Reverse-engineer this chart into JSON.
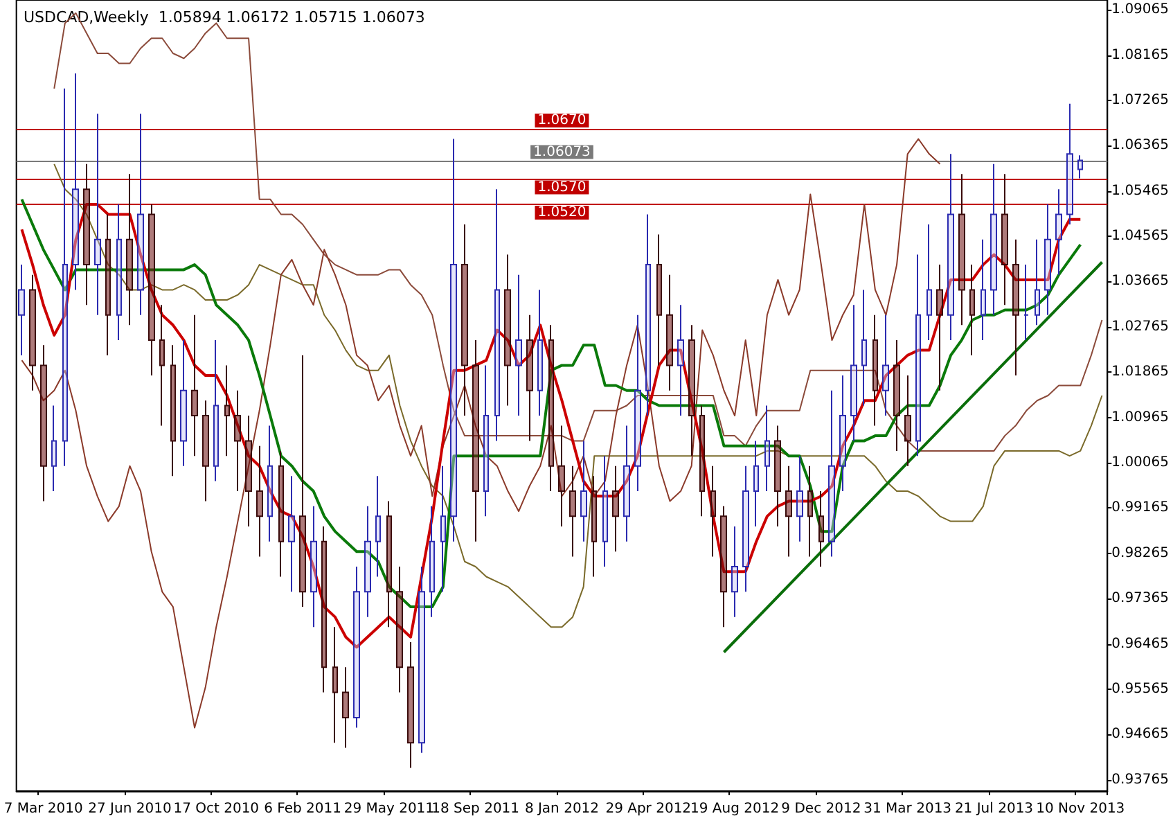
{
  "chart_data": {
    "type": "candlestick",
    "title": "USDCAD,Weekly  1.05894 1.06172 1.05715 1.06073",
    "categories": [
      null,
      null,
      "7 Mar 2010",
      null,
      null,
      null,
      null,
      null,
      null,
      null,
      "27 Jun 2010",
      null,
      null,
      null,
      null,
      null,
      null,
      null,
      "17 Oct 2010",
      null,
      null,
      null,
      null,
      null,
      null,
      null,
      "6 Feb 2011",
      null,
      null,
      null,
      null,
      null,
      null,
      null,
      "29 May 2011",
      null,
      null,
      null,
      null,
      null,
      null,
      null,
      "18 Sep 2011",
      null,
      null,
      null,
      null,
      null,
      null,
      null,
      "8 Jan 2012",
      null,
      null,
      null,
      null,
      null,
      null,
      null,
      "29 Apr 2012",
      null,
      null,
      null,
      null,
      null,
      null,
      null,
      "19 Aug 2012",
      null,
      null,
      null,
      null,
      null,
      null,
      null,
      "9 Dec 2012",
      null,
      null,
      null,
      null,
      null,
      null,
      null,
      "31 Mar 2013",
      null,
      null,
      null,
      null,
      null,
      null,
      null,
      "21 Jul 2013",
      null,
      null,
      null,
      null,
      null,
      null,
      null,
      "10 Nov 2013",
      null,
      null
    ],
    "ohlc": [
      [
        1.03,
        1.04,
        1.022,
        1.035
      ],
      [
        1.035,
        1.038,
        1.015,
        1.02
      ],
      [
        1.02,
        1.024,
        0.993,
        1.0
      ],
      [
        1.0,
        1.012,
        0.995,
        1.005
      ],
      [
        1.005,
        1.075,
        1.0,
        1.04
      ],
      [
        1.04,
        1.078,
        1.035,
        1.055
      ],
      [
        1.055,
        1.06,
        1.032,
        1.04
      ],
      [
        1.04,
        1.07,
        1.03,
        1.045
      ],
      [
        1.045,
        1.05,
        1.022,
        1.03
      ],
      [
        1.03,
        1.052,
        1.025,
        1.045
      ],
      [
        1.045,
        1.058,
        1.028,
        1.035
      ],
      [
        1.035,
        1.07,
        1.03,
        1.05
      ],
      [
        1.05,
        1.052,
        1.018,
        1.025
      ],
      [
        1.025,
        1.032,
        1.008,
        1.02
      ],
      [
        1.02,
        1.024,
        0.998,
        1.005
      ],
      [
        1.005,
        1.025,
        1.0,
        1.015
      ],
      [
        1.015,
        1.03,
        1.002,
        1.01
      ],
      [
        1.01,
        1.013,
        0.993,
        1.0
      ],
      [
        1.0,
        1.025,
        0.997,
        1.012
      ],
      [
        1.012,
        1.02,
        1.002,
        1.01
      ],
      [
        1.01,
        1.015,
        0.995,
        1.005
      ],
      [
        1.005,
        1.01,
        0.988,
        0.995
      ],
      [
        0.995,
        1.004,
        0.982,
        0.99
      ],
      [
        0.99,
        1.008,
        0.985,
        1.0
      ],
      [
        1.0,
        1.003,
        0.978,
        0.985
      ],
      [
        0.985,
        0.998,
        0.975,
        0.99
      ],
      [
        0.99,
        1.022,
        0.972,
        0.975
      ],
      [
        0.975,
        0.992,
        0.968,
        0.985
      ],
      [
        0.985,
        0.988,
        0.955,
        0.96
      ],
      [
        0.96,
        0.968,
        0.945,
        0.955
      ],
      [
        0.955,
        0.96,
        0.944,
        0.95
      ],
      [
        0.95,
        0.98,
        0.948,
        0.975
      ],
      [
        0.975,
        0.992,
        0.97,
        0.985
      ],
      [
        0.985,
        0.998,
        0.978,
        0.99
      ],
      [
        0.99,
        0.993,
        0.968,
        0.975
      ],
      [
        0.975,
        0.98,
        0.955,
        0.96
      ],
      [
        0.96,
        0.965,
        0.94,
        0.945
      ],
      [
        0.945,
        0.98,
        0.943,
        0.975
      ],
      [
        0.975,
        0.992,
        0.97,
        0.985
      ],
      [
        0.985,
        1.0,
        0.975,
        0.99
      ],
      [
        0.99,
        1.065,
        0.985,
        1.04
      ],
      [
        1.04,
        1.048,
        1.01,
        1.02
      ],
      [
        1.02,
        1.025,
        0.985,
        0.995
      ],
      [
        0.995,
        1.02,
        0.99,
        1.01
      ],
      [
        1.01,
        1.055,
        1.005,
        1.035
      ],
      [
        1.035,
        1.042,
        1.012,
        1.02
      ],
      [
        1.02,
        1.038,
        1.01,
        1.025
      ],
      [
        1.025,
        1.03,
        1.005,
        1.015
      ],
      [
        1.015,
        1.035,
        1.01,
        1.025
      ],
      [
        1.025,
        1.028,
        0.995,
        1.0
      ],
      [
        1.0,
        1.008,
        0.988,
        0.995
      ],
      [
        0.995,
        1.0,
        0.982,
        0.99
      ],
      [
        0.99,
        1.005,
        0.985,
        0.995
      ],
      [
        0.995,
        0.998,
        0.978,
        0.985
      ],
      [
        0.985,
        1.002,
        0.98,
        0.995
      ],
      [
        0.995,
        1.0,
        0.983,
        0.99
      ],
      [
        0.99,
        1.008,
        0.985,
        1.0
      ],
      [
        1.0,
        1.03,
        0.995,
        1.015
      ],
      [
        1.015,
        1.05,
        1.01,
        1.04
      ],
      [
        1.04,
        1.046,
        1.02,
        1.03
      ],
      [
        1.03,
        1.038,
        1.015,
        1.02
      ],
      [
        1.02,
        1.032,
        1.01,
        1.025
      ],
      [
        1.025,
        1.028,
        1.002,
        1.01
      ],
      [
        1.01,
        1.012,
        0.99,
        0.995
      ],
      [
        0.995,
        1.0,
        0.982,
        0.99
      ],
      [
        0.99,
        0.992,
        0.968,
        0.975
      ],
      [
        0.975,
        0.988,
        0.97,
        0.98
      ],
      [
        0.98,
        1.0,
        0.975,
        0.995
      ],
      [
        0.995,
        1.005,
        0.988,
        1.0
      ],
      [
        1.0,
        1.012,
        0.995,
        1.005
      ],
      [
        1.005,
        1.008,
        0.988,
        0.995
      ],
      [
        0.995,
        1.0,
        0.982,
        0.99
      ],
      [
        0.99,
        1.002,
        0.985,
        0.995
      ],
      [
        0.995,
        1.0,
        0.982,
        0.99
      ],
      [
        0.99,
        0.995,
        0.98,
        0.985
      ],
      [
        0.985,
        1.015,
        0.982,
        1.0
      ],
      [
        1.0,
        1.018,
        0.995,
        1.01
      ],
      [
        1.01,
        1.032,
        1.005,
        1.02
      ],
      [
        1.02,
        1.035,
        1.012,
        1.025
      ],
      [
        1.025,
        1.03,
        1.008,
        1.015
      ],
      [
        1.015,
        1.03,
        1.01,
        1.02
      ],
      [
        1.02,
        1.025,
        1.003,
        1.01
      ],
      [
        1.01,
        1.018,
        1.0,
        1.005
      ],
      [
        1.005,
        1.042,
        1.002,
        1.03
      ],
      [
        1.03,
        1.048,
        1.025,
        1.035
      ],
      [
        1.035,
        1.04,
        1.015,
        1.03
      ],
      [
        1.03,
        1.062,
        1.025,
        1.05
      ],
      [
        1.05,
        1.058,
        1.028,
        1.035
      ],
      [
        1.035,
        1.04,
        1.022,
        1.03
      ],
      [
        1.03,
        1.045,
        1.025,
        1.035
      ],
      [
        1.035,
        1.06,
        1.03,
        1.05
      ],
      [
        1.05,
        1.058,
        1.032,
        1.04
      ],
      [
        1.04,
        1.045,
        1.018,
        1.03
      ],
      [
        1.03,
        1.04,
        1.025,
        1.03
      ],
      [
        1.03,
        1.045,
        1.028,
        1.035
      ],
      [
        1.035,
        1.052,
        1.03,
        1.045
      ],
      [
        1.045,
        1.055,
        1.038,
        1.05
      ],
      [
        1.05,
        1.072,
        1.048,
        1.062
      ],
      [
        1.05894,
        1.06172,
        1.05715,
        1.06073
      ],
      null,
      null
    ],
    "series": [
      {
        "type": "line",
        "color": "#8b4a3a",
        "values": [
          null,
          null,
          null,
          1.075,
          1.088,
          1.09,
          1.086,
          1.082,
          1.082,
          1.08,
          1.08,
          1.083,
          1.085,
          1.085,
          1.082,
          1.081,
          1.083,
          1.086,
          1.088,
          1.085,
          1.085,
          1.085,
          1.053,
          1.053,
          1.05,
          1.05,
          1.048,
          1.045,
          1.042,
          1.04,
          1.039,
          1.038,
          1.038,
          1.038,
          1.039,
          1.039,
          1.036,
          1.034,
          1.03,
          1.02,
          1.011,
          1.006,
          1.006,
          1.006,
          1.006,
          1.006,
          1.006,
          1.006,
          1.006,
          1.006,
          1.006,
          1.005,
          1.005,
          1.011,
          1.011,
          1.011,
          1.012,
          1.014,
          1.014,
          1.014,
          1.014,
          1.014,
          1.014,
          1.014,
          1.014,
          1.006,
          1.006,
          1.004,
          1.008,
          1.011,
          1.011,
          1.011,
          1.011,
          1.019,
          1.019,
          1.019,
          1.019,
          1.019,
          1.019,
          1.019,
          1.011,
          1.008,
          1.005,
          1.003,
          1.003,
          1.003,
          1.003,
          1.003,
          1.003,
          1.003,
          1.003,
          1.006,
          1.008,
          1.011,
          1.013,
          1.014,
          1.016,
          1.016,
          1.016,
          1.022,
          1.029
        ]
      },
      {
        "type": "line",
        "color": "#7a6a2a",
        "values": [
          null,
          null,
          null,
          1.06,
          1.055,
          1.053,
          1.05,
          1.045,
          1.04,
          1.038,
          1.035,
          1.035,
          1.036,
          1.035,
          1.035,
          1.036,
          1.035,
          1.033,
          1.033,
          1.033,
          1.034,
          1.036,
          1.04,
          1.039,
          1.038,
          1.037,
          1.036,
          1.036,
          1.03,
          1.027,
          1.023,
          1.02,
          1.019,
          1.019,
          1.022,
          1.012,
          1.005,
          1.0,
          0.996,
          0.994,
          0.988,
          0.981,
          0.98,
          0.978,
          0.977,
          0.976,
          0.974,
          0.972,
          0.97,
          0.968,
          0.968,
          0.97,
          0.976,
          1.002,
          1.002,
          1.002,
          1.002,
          1.002,
          1.002,
          1.002,
          1.002,
          1.002,
          1.002,
          1.002,
          1.002,
          1.002,
          1.002,
          1.002,
          1.002,
          1.003,
          1.003,
          1.002,
          1.002,
          1.002,
          1.002,
          1.002,
          1.002,
          1.002,
          1.002,
          1.0,
          0.997,
          0.995,
          0.995,
          0.994,
          0.992,
          0.99,
          0.989,
          0.989,
          0.989,
          0.992,
          1.0,
          1.003,
          1.003,
          1.003,
          1.003,
          1.003,
          1.003,
          1.002,
          1.003,
          1.008,
          1.014
        ]
      },
      {
        "type": "line",
        "color": "#8b3a2a",
        "values": [
          1.021,
          1.018,
          1.013,
          1.015,
          1.019,
          1.011,
          1.0,
          0.994,
          0.989,
          0.992,
          1.0,
          0.995,
          0.983,
          0.975,
          0.972,
          0.96,
          0.948,
          0.956,
          0.968,
          0.978,
          0.989,
          1.0,
          1.011,
          1.024,
          1.038,
          1.041,
          1.036,
          1.032,
          1.043,
          1.038,
          1.032,
          1.022,
          1.02,
          1.013,
          1.016,
          1.008,
          1.002,
          1.008,
          0.994,
          1.004,
          1.01,
          1.016,
          1.008,
          1.002,
          1.0,
          0.995,
          0.991,
          0.996,
          1.0,
          1.008,
          0.994,
          0.997,
          1.002,
          0.994,
          0.997,
          1.01,
          1.02,
          1.028,
          1.015,
          1.0,
          0.993,
          0.995,
          1.0,
          1.027,
          1.022,
          1.015,
          1.01,
          1.025,
          1.01,
          1.03,
          1.037,
          1.03,
          1.035,
          1.054,
          1.04,
          1.025,
          1.03,
          1.034,
          1.052,
          1.035,
          1.03,
          1.04,
          1.062,
          1.065,
          1.062,
          1.06,
          null,
          null,
          null,
          null,
          null,
          null,
          null,
          null,
          null,
          null,
          null,
          null,
          null,
          null,
          null
        ]
      },
      {
        "type": "line",
        "color": "#0a7a0a",
        "values": [
          1.053,
          1.048,
          1.043,
          1.039,
          1.035,
          1.039,
          1.039,
          1.039,
          1.039,
          1.039,
          1.039,
          1.039,
          1.039,
          1.039,
          1.039,
          1.039,
          1.04,
          1.038,
          1.032,
          1.03,
          1.028,
          1.025,
          1.018,
          1.01,
          1.002,
          1.0,
          0.997,
          0.995,
          0.99,
          0.987,
          0.985,
          0.983,
          0.983,
          0.981,
          0.976,
          0.974,
          0.972,
          0.972,
          0.972,
          0.976,
          1.002,
          1.002,
          1.002,
          1.002,
          1.002,
          1.002,
          1.002,
          1.002,
          1.002,
          1.019,
          1.02,
          1.02,
          1.024,
          1.024,
          1.016,
          1.016,
          1.015,
          1.015,
          1.013,
          1.012,
          1.012,
          1.012,
          1.012,
          1.012,
          1.012,
          1.004,
          1.004,
          1.004,
          1.004,
          1.004,
          1.004,
          1.002,
          1.002,
          0.996,
          0.987,
          0.987,
          1.0,
          1.005,
          1.005,
          1.006,
          1.006,
          1.01,
          1.012,
          1.012,
          1.012,
          1.016,
          1.022,
          1.025,
          1.029,
          1.03,
          1.03,
          1.031,
          1.031,
          1.031,
          1.032,
          1.034,
          1.038,
          1.041,
          1.044,
          null,
          null
        ]
      },
      {
        "type": "line",
        "color": "#cc0000",
        "values": [
          1.047,
          1.04,
          1.032,
          1.026,
          1.03,
          1.045,
          1.052,
          1.052,
          1.05,
          1.05,
          1.05,
          1.042,
          1.035,
          1.03,
          1.028,
          1.025,
          1.02,
          1.018,
          1.018,
          1.014,
          1.008,
          1.002,
          1.0,
          0.995,
          0.991,
          0.99,
          0.986,
          0.98,
          0.972,
          0.97,
          0.966,
          0.964,
          0.966,
          0.968,
          0.97,
          0.968,
          0.966,
          0.978,
          0.99,
          1.005,
          1.019,
          1.019,
          1.02,
          1.021,
          1.027,
          1.025,
          1.02,
          1.022,
          1.028,
          1.02,
          1.013,
          1.005,
          0.997,
          0.994,
          0.994,
          0.994,
          0.997,
          1.002,
          1.011,
          1.02,
          1.023,
          1.023,
          1.013,
          1.003,
          0.99,
          0.979,
          0.979,
          0.979,
          0.985,
          0.99,
          0.992,
          0.993,
          0.993,
          0.993,
          0.994,
          0.996,
          1.004,
          1.008,
          1.013,
          1.013,
          1.018,
          1.02,
          1.022,
          1.023,
          1.023,
          1.03,
          1.037,
          1.037,
          1.037,
          1.04,
          1.042,
          1.04,
          1.037,
          1.037,
          1.037,
          1.037,
          1.045,
          1.049,
          1.049,
          null,
          null
        ]
      },
      {
        "type": "line",
        "color": "#0a6e0a",
        "values": [
          null,
          null,
          null,
          null,
          null,
          null,
          null,
          null,
          null,
          null,
          null,
          null,
          null,
          null,
          null,
          null,
          null,
          null,
          null,
          null,
          null,
          null,
          null,
          null,
          null,
          null,
          null,
          null,
          null,
          null,
          null,
          null,
          null,
          null,
          null,
          null,
          null,
          null,
          null,
          null,
          null,
          null,
          null,
          null,
          null,
          null,
          null,
          null,
          null,
          null,
          null,
          null,
          null,
          null,
          null,
          null,
          null,
          null,
          null,
          null,
          null,
          null,
          null,
          null,
          null,
          0.963,
          null,
          null,
          null,
          null,
          null,
          null,
          null,
          null,
          null,
          null,
          null,
          null,
          null,
          null,
          null,
          null,
          null,
          null,
          null,
          null,
          null,
          null,
          null,
          null,
          null,
          null,
          null,
          null,
          null,
          null,
          null,
          null,
          null,
          null,
          1.0405
        ]
      }
    ],
    "ylim": [
      0.9354,
      1.0926
    ],
    "yticks": [
      0.93765,
      0.94665,
      0.95565,
      0.96465,
      0.97365,
      0.98265,
      0.99165,
      1.00065,
      1.00965,
      1.01865,
      1.02765,
      1.03665,
      1.04565,
      1.05465,
      1.06365,
      1.07265,
      1.08165,
      1.09065
    ],
    "ref_lines": [
      {
        "axis": "y",
        "value": 1.067,
        "label": "1.0670",
        "color": "#c00000"
      },
      {
        "axis": "y",
        "value": 1.06073,
        "label": "1.06073",
        "color": "#7a7a7a"
      },
      {
        "axis": "y",
        "value": 1.057,
        "label": "1.0570",
        "color": "#c00000"
      },
      {
        "axis": "y",
        "value": 1.052,
        "label": "1.0520",
        "color": "#c00000"
      }
    ],
    "grid": false,
    "marker": "none",
    "line_style": "solid"
  }
}
